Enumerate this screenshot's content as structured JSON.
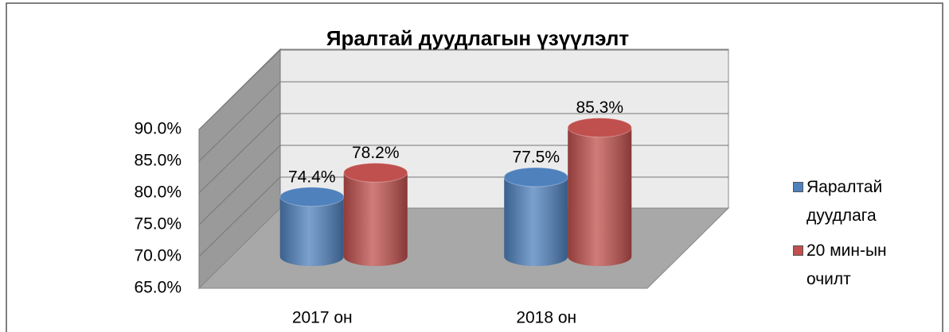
{
  "chart_data": {
    "type": "bar3d",
    "title": "Яралтай дуудлагын үзүүлэлт",
    "categories": [
      "2017 он",
      "2018 он"
    ],
    "series": [
      {
        "name": "Яаралтай дуудлага",
        "color": "#4f81bd",
        "values": [
          74.4,
          77.5
        ],
        "value_labels": [
          "74.4%",
          "77.5%"
        ]
      },
      {
        "name": "20 мин-ын очилт",
        "color": "#c0504d",
        "values": [
          78.2,
          85.3
        ],
        "value_labels": [
          "78.2%",
          "85.3%"
        ]
      }
    ],
    "ylim": [
      65,
      90
    ],
    "yticks": [
      {
        "value": 65,
        "label": "65.0%"
      },
      {
        "value": 70,
        "label": "70.0%"
      },
      {
        "value": 75,
        "label": "75.0%"
      },
      {
        "value": 80,
        "label": "80.0%"
      },
      {
        "value": 85,
        "label": "85.0%"
      },
      {
        "value": 90,
        "label": "90.0%"
      }
    ],
    "grid": true,
    "legend": "right"
  }
}
